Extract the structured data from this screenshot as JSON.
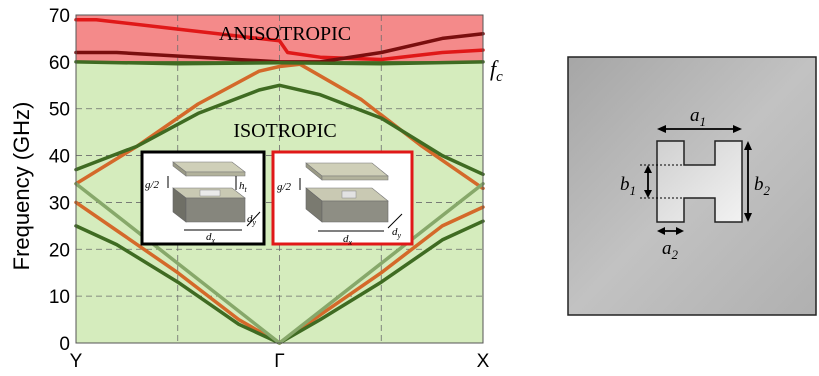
{
  "chart_data": {
    "type": "line",
    "ylabel": "Frequency (GHz)",
    "ylim": [
      0,
      70
    ],
    "yticks": [
      "0",
      "10",
      "20",
      "30",
      "40",
      "50",
      "60",
      "70"
    ],
    "xticks": [
      "Y",
      "Γ",
      "X"
    ],
    "grid": true,
    "regions": [
      {
        "name": "ANISOTROPIC",
        "range": [
          60,
          70
        ],
        "color": "#f48a8a"
      },
      {
        "name": "ISOTROPIC",
        "range": [
          0,
          60
        ],
        "color": "#d5ecbd"
      }
    ],
    "cutoff_label": "f_c",
    "cutoff_value": 60,
    "series": [
      {
        "color": "#e01818",
        "x": [
          0,
          0.05,
          0.25,
          0.5,
          0.52,
          0.6,
          0.75,
          0.9,
          1.0
        ],
        "y": [
          69,
          69,
          67,
          64.5,
          62,
          61,
          60.5,
          62,
          62.5
        ]
      },
      {
        "color": "#7a0e0e",
        "x": [
          0,
          0.1,
          0.3,
          0.5,
          0.6,
          0.75,
          0.9,
          1.0
        ],
        "y": [
          62,
          62,
          61,
          60,
          60,
          62,
          65,
          66
        ]
      },
      {
        "color": "#d4692a",
        "x": [
          0,
          0.15,
          0.3,
          0.45,
          0.5,
          0.55,
          0.7,
          0.85,
          1.0
        ],
        "y": [
          34,
          42,
          51,
          58,
          59,
          59.5,
          52,
          42,
          33
        ]
      },
      {
        "color": "#d4692a",
        "x": [
          0,
          0.1,
          0.25,
          0.4,
          0.5,
          0.6,
          0.75,
          0.9,
          1.0
        ],
        "y": [
          30,
          24,
          15,
          5,
          0,
          6,
          15,
          25,
          29
        ]
      },
      {
        "color": "#3f6b22",
        "x": [
          0,
          0.15,
          0.3,
          0.45,
          0.5,
          0.6,
          0.75,
          0.9,
          1.0
        ],
        "y": [
          37,
          42,
          49,
          54,
          55,
          53,
          48,
          40,
          36
        ]
      },
      {
        "color": "#3f6b22",
        "x": [
          0,
          0.1,
          0.25,
          0.4,
          0.5,
          0.6,
          0.75,
          0.9,
          1.0
        ],
        "y": [
          25,
          21,
          13,
          4,
          0,
          5,
          13,
          22,
          26
        ]
      },
      {
        "color": "#87a86a",
        "x": [
          0,
          0.5,
          1.0
        ],
        "y": [
          34,
          0,
          34
        ]
      },
      {
        "color": "#3f6b22",
        "x": [
          0,
          0.25,
          0.5,
          0.75,
          1.0
        ],
        "y": [
          60,
          59.6,
          59.8,
          59.6,
          60
        ]
      }
    ]
  },
  "insets": [
    {
      "border": "#000000",
      "labels": [
        "g/2",
        "h_t",
        "d_x",
        "d_y"
      ]
    },
    {
      "border": "#e01818",
      "labels": [
        "g/2",
        "d_x",
        "d_y"
      ]
    }
  ],
  "unit_cell": {
    "labels": [
      "a_1",
      "a_2",
      "b_1",
      "b_2"
    ]
  }
}
